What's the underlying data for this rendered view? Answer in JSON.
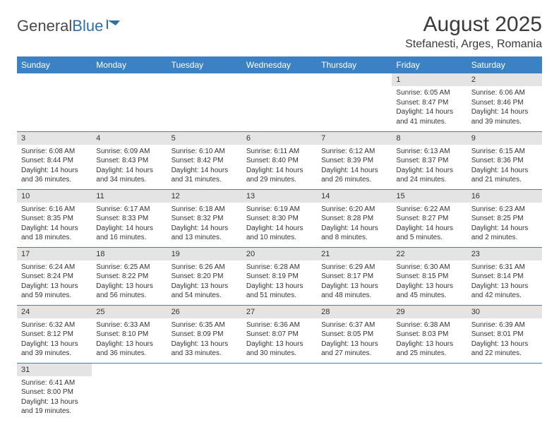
{
  "logo": {
    "text1": "General",
    "text2": "Blue"
  },
  "title": "August 2025",
  "location": "Stefanesti, Arges, Romania",
  "colors": {
    "header_bg": "#3b82c4",
    "header_text": "#ffffff",
    "day_head_bg": "#e4e4e4",
    "border": "#3b82c4",
    "logo_blue": "#2f6fa8"
  },
  "weekdays": [
    "Sunday",
    "Monday",
    "Tuesday",
    "Wednesday",
    "Thursday",
    "Friday",
    "Saturday"
  ],
  "weeks": [
    [
      null,
      null,
      null,
      null,
      null,
      {
        "n": "1",
        "sr": "6:05 AM",
        "ss": "8:47 PM",
        "dl": "14 hours and 41 minutes."
      },
      {
        "n": "2",
        "sr": "6:06 AM",
        "ss": "8:46 PM",
        "dl": "14 hours and 39 minutes."
      }
    ],
    [
      {
        "n": "3",
        "sr": "6:08 AM",
        "ss": "8:44 PM",
        "dl": "14 hours and 36 minutes."
      },
      {
        "n": "4",
        "sr": "6:09 AM",
        "ss": "8:43 PM",
        "dl": "14 hours and 34 minutes."
      },
      {
        "n": "5",
        "sr": "6:10 AM",
        "ss": "8:42 PM",
        "dl": "14 hours and 31 minutes."
      },
      {
        "n": "6",
        "sr": "6:11 AM",
        "ss": "8:40 PM",
        "dl": "14 hours and 29 minutes."
      },
      {
        "n": "7",
        "sr": "6:12 AM",
        "ss": "8:39 PM",
        "dl": "14 hours and 26 minutes."
      },
      {
        "n": "8",
        "sr": "6:13 AM",
        "ss": "8:37 PM",
        "dl": "14 hours and 24 minutes."
      },
      {
        "n": "9",
        "sr": "6:15 AM",
        "ss": "8:36 PM",
        "dl": "14 hours and 21 minutes."
      }
    ],
    [
      {
        "n": "10",
        "sr": "6:16 AM",
        "ss": "8:35 PM",
        "dl": "14 hours and 18 minutes."
      },
      {
        "n": "11",
        "sr": "6:17 AM",
        "ss": "8:33 PM",
        "dl": "14 hours and 16 minutes."
      },
      {
        "n": "12",
        "sr": "6:18 AM",
        "ss": "8:32 PM",
        "dl": "14 hours and 13 minutes."
      },
      {
        "n": "13",
        "sr": "6:19 AM",
        "ss": "8:30 PM",
        "dl": "14 hours and 10 minutes."
      },
      {
        "n": "14",
        "sr": "6:20 AM",
        "ss": "8:28 PM",
        "dl": "14 hours and 8 minutes."
      },
      {
        "n": "15",
        "sr": "6:22 AM",
        "ss": "8:27 PM",
        "dl": "14 hours and 5 minutes."
      },
      {
        "n": "16",
        "sr": "6:23 AM",
        "ss": "8:25 PM",
        "dl": "14 hours and 2 minutes."
      }
    ],
    [
      {
        "n": "17",
        "sr": "6:24 AM",
        "ss": "8:24 PM",
        "dl": "13 hours and 59 minutes."
      },
      {
        "n": "18",
        "sr": "6:25 AM",
        "ss": "8:22 PM",
        "dl": "13 hours and 56 minutes."
      },
      {
        "n": "19",
        "sr": "6:26 AM",
        "ss": "8:20 PM",
        "dl": "13 hours and 54 minutes."
      },
      {
        "n": "20",
        "sr": "6:28 AM",
        "ss": "8:19 PM",
        "dl": "13 hours and 51 minutes."
      },
      {
        "n": "21",
        "sr": "6:29 AM",
        "ss": "8:17 PM",
        "dl": "13 hours and 48 minutes."
      },
      {
        "n": "22",
        "sr": "6:30 AM",
        "ss": "8:15 PM",
        "dl": "13 hours and 45 minutes."
      },
      {
        "n": "23",
        "sr": "6:31 AM",
        "ss": "8:14 PM",
        "dl": "13 hours and 42 minutes."
      }
    ],
    [
      {
        "n": "24",
        "sr": "6:32 AM",
        "ss": "8:12 PM",
        "dl": "13 hours and 39 minutes."
      },
      {
        "n": "25",
        "sr": "6:33 AM",
        "ss": "8:10 PM",
        "dl": "13 hours and 36 minutes."
      },
      {
        "n": "26",
        "sr": "6:35 AM",
        "ss": "8:09 PM",
        "dl": "13 hours and 33 minutes."
      },
      {
        "n": "27",
        "sr": "6:36 AM",
        "ss": "8:07 PM",
        "dl": "13 hours and 30 minutes."
      },
      {
        "n": "28",
        "sr": "6:37 AM",
        "ss": "8:05 PM",
        "dl": "13 hours and 27 minutes."
      },
      {
        "n": "29",
        "sr": "6:38 AM",
        "ss": "8:03 PM",
        "dl": "13 hours and 25 minutes."
      },
      {
        "n": "30",
        "sr": "6:39 AM",
        "ss": "8:01 PM",
        "dl": "13 hours and 22 minutes."
      }
    ],
    [
      {
        "n": "31",
        "sr": "6:41 AM",
        "ss": "8:00 PM",
        "dl": "13 hours and 19 minutes."
      },
      null,
      null,
      null,
      null,
      null,
      null
    ]
  ],
  "labels": {
    "sunrise": "Sunrise:",
    "sunset": "Sunset:",
    "daylight": "Daylight:"
  }
}
